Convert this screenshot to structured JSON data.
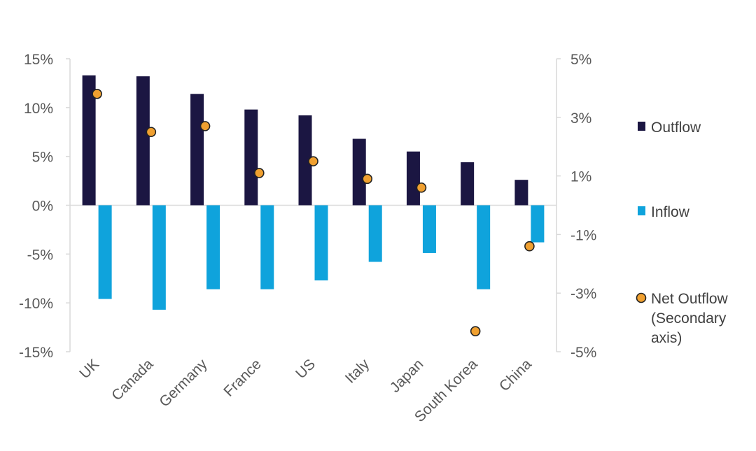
{
  "chart_data": {
    "type": "bar",
    "categories": [
      "UK",
      "Canada",
      "Germany",
      "France",
      "US",
      "Italy",
      "Japan",
      "South Korea",
      "China"
    ],
    "series": [
      {
        "name": "Outflow",
        "axis": "primary",
        "kind": "bar",
        "color": "#1b1642",
        "values": [
          13.3,
          13.2,
          11.4,
          9.8,
          9.2,
          6.8,
          5.5,
          4.4,
          2.6
        ]
      },
      {
        "name": "Inflow",
        "axis": "primary",
        "kind": "bar",
        "color": "#0fa3dc",
        "values": [
          -9.6,
          -10.7,
          -8.6,
          -8.6,
          -7.7,
          -5.8,
          -4.9,
          -8.6,
          -3.8
        ]
      },
      {
        "name": "Net Outflow",
        "axis": "secondary",
        "kind": "scatter",
        "color": "#f0a030",
        "values": [
          3.8,
          2.5,
          2.7,
          1.1,
          1.5,
          0.9,
          0.6,
          -4.3,
          -1.4
        ]
      }
    ],
    "legend_lines": {
      "outflow": [
        "Outflow"
      ],
      "inflow": [
        "Inflow"
      ],
      "net": [
        "Net Outflow",
        "(Secondary",
        "axis)"
      ]
    },
    "y_primary": {
      "ylim": [
        -15,
        15
      ],
      "ticks": [
        15,
        10,
        5,
        0,
        -5,
        -10,
        -15
      ],
      "tick_labels": [
        "15%",
        "10%",
        "5%",
        "0%",
        "-5%",
        "-10%",
        "-15%"
      ]
    },
    "y_secondary": {
      "ylim": [
        -5,
        5
      ],
      "ticks": [
        5,
        3,
        1,
        -1,
        -3,
        -5
      ],
      "tick_labels": [
        "5%",
        "3%",
        "1%",
        "-1%",
        "-3%",
        "-5%"
      ]
    },
    "grid": false,
    "legend_position": "right",
    "title": "",
    "xlabel": "",
    "ylabel": ""
  }
}
